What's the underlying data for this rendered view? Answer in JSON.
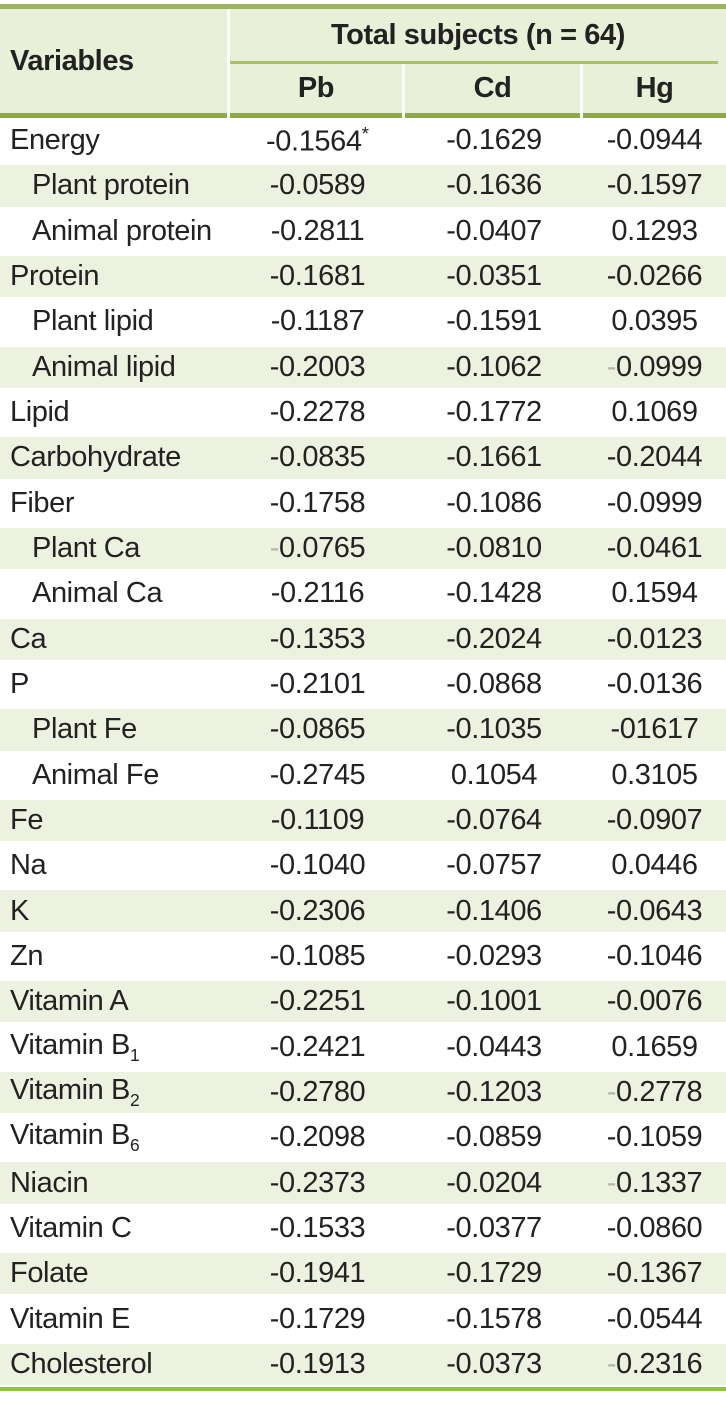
{
  "table": {
    "variables_header": "Variables",
    "group_header": "Total subjects (n = 64)",
    "columns": [
      "Pb",
      "Cd",
      "Hg"
    ],
    "colors": {
      "header_background": "#e9f0d8",
      "row_stripe_green": "#edf2e0",
      "top_border_green": "#9cb25c",
      "group_underline_green": "#a9c263",
      "header_bottom_border_green": "#8fa94a",
      "bottom_border_green": "#8dc63f",
      "text": "#222222"
    },
    "rows": [
      {
        "label": "Energy",
        "indent": false,
        "cells": [
          {
            "v": "-0.1564",
            "sup": "*"
          },
          {
            "v": "-0.1629"
          },
          {
            "v": "-0.0944"
          }
        ]
      },
      {
        "label": "Plant protein",
        "indent": true,
        "cells": [
          {
            "v": "-0.0589"
          },
          {
            "v": "-0.1636"
          },
          {
            "v": "-0.1597"
          }
        ]
      },
      {
        "label": "Animal protein",
        "indent": true,
        "cells": [
          {
            "v": "-0.2811"
          },
          {
            "v": "-0.0407"
          },
          {
            "v": "0.1293"
          }
        ]
      },
      {
        "label": "Protein",
        "indent": false,
        "cells": [
          {
            "v": "-0.1681"
          },
          {
            "v": "-0.0351"
          },
          {
            "v": "-0.0266"
          }
        ]
      },
      {
        "label": "Plant lipid",
        "indent": true,
        "cells": [
          {
            "v": "-0.1187"
          },
          {
            "v": "-0.1591"
          },
          {
            "v": "0.0395"
          }
        ]
      },
      {
        "label": "Animal lipid",
        "indent": true,
        "cells": [
          {
            "v": "-0.2003"
          },
          {
            "v": "-0.1062"
          },
          {
            "v": "-0.0999",
            "faint_minus": true
          }
        ]
      },
      {
        "label": "Lipid",
        "indent": false,
        "cells": [
          {
            "v": "-0.2278"
          },
          {
            "v": "-0.1772"
          },
          {
            "v": "0.1069"
          }
        ]
      },
      {
        "label": "Carbohydrate",
        "indent": false,
        "cells": [
          {
            "v": "-0.0835"
          },
          {
            "v": "-0.1661"
          },
          {
            "v": "-0.2044"
          }
        ]
      },
      {
        "label": "Fiber",
        "indent": false,
        "cells": [
          {
            "v": "-0.1758"
          },
          {
            "v": "-0.1086"
          },
          {
            "v": "-0.0999"
          }
        ]
      },
      {
        "label": "Plant Ca",
        "indent": true,
        "cells": [
          {
            "v": "-0.0765",
            "faint_minus": true
          },
          {
            "v": "-0.0810"
          },
          {
            "v": "-0.0461"
          }
        ]
      },
      {
        "label": "Animal Ca",
        "indent": true,
        "cells": [
          {
            "v": "-0.2116"
          },
          {
            "v": "-0.1428"
          },
          {
            "v": "0.1594"
          }
        ]
      },
      {
        "label": "Ca",
        "indent": false,
        "cells": [
          {
            "v": "-0.1353"
          },
          {
            "v": "-0.2024"
          },
          {
            "v": "-0.0123"
          }
        ]
      },
      {
        "label": "P",
        "indent": false,
        "cells": [
          {
            "v": "-0.2101"
          },
          {
            "v": "-0.0868"
          },
          {
            "v": "-0.0136"
          }
        ]
      },
      {
        "label": "Plant Fe",
        "indent": true,
        "cells": [
          {
            "v": "-0.0865"
          },
          {
            "v": "-0.1035"
          },
          {
            "v": "-01617"
          }
        ]
      },
      {
        "label": "Animal Fe",
        "indent": true,
        "cells": [
          {
            "v": "-0.2745"
          },
          {
            "v": "0.1054"
          },
          {
            "v": "0.3105"
          }
        ]
      },
      {
        "label": "Fe",
        "indent": false,
        "cells": [
          {
            "v": "-0.1109"
          },
          {
            "v": "-0.0764"
          },
          {
            "v": "-0.0907"
          }
        ]
      },
      {
        "label": "Na",
        "indent": false,
        "cells": [
          {
            "v": "-0.1040"
          },
          {
            "v": "-0.0757"
          },
          {
            "v": "0.0446"
          }
        ]
      },
      {
        "label": "K",
        "indent": false,
        "cells": [
          {
            "v": "-0.2306"
          },
          {
            "v": "-0.1406"
          },
          {
            "v": "-0.0643"
          }
        ]
      },
      {
        "label": "Zn",
        "indent": false,
        "cells": [
          {
            "v": "-0.1085"
          },
          {
            "v": "-0.0293"
          },
          {
            "v": "-0.1046"
          }
        ]
      },
      {
        "label": "Vitamin A",
        "indent": false,
        "cells": [
          {
            "v": "-0.2251"
          },
          {
            "v": "-0.1001"
          },
          {
            "v": "-0.0076"
          }
        ]
      },
      {
        "label": "Vitamin B",
        "sub": "1",
        "indent": false,
        "cells": [
          {
            "v": "-0.2421"
          },
          {
            "v": "-0.0443"
          },
          {
            "v": "0.1659"
          }
        ]
      },
      {
        "label": "Vitamin B",
        "sub": "2",
        "indent": false,
        "cells": [
          {
            "v": "-0.2780"
          },
          {
            "v": "-0.1203"
          },
          {
            "v": "-0.2778",
            "faint_minus": true
          }
        ]
      },
      {
        "label": "Vitamin B",
        "sub": "6",
        "indent": false,
        "cells": [
          {
            "v": "-0.2098"
          },
          {
            "v": "-0.0859"
          },
          {
            "v": "-0.1059"
          }
        ]
      },
      {
        "label": "Niacin",
        "indent": false,
        "cells": [
          {
            "v": "-0.2373"
          },
          {
            "v": "-0.0204"
          },
          {
            "v": "-0.1337",
            "faint_minus": true
          }
        ]
      },
      {
        "label": "Vitamin C",
        "indent": false,
        "cells": [
          {
            "v": "-0.1533"
          },
          {
            "v": "-0.0377"
          },
          {
            "v": "-0.0860"
          }
        ]
      },
      {
        "label": "Folate",
        "indent": false,
        "cells": [
          {
            "v": "-0.1941"
          },
          {
            "v": "-0.1729"
          },
          {
            "v": "-0.1367"
          }
        ]
      },
      {
        "label": "Vitamin E",
        "indent": false,
        "cells": [
          {
            "v": "-0.1729"
          },
          {
            "v": "-0.1578"
          },
          {
            "v": "-0.0544"
          }
        ]
      },
      {
        "label": "Cholesterol",
        "indent": false,
        "cells": [
          {
            "v": "-0.1913"
          },
          {
            "v": "-0.0373"
          },
          {
            "v": "-0.2316",
            "faint_minus": true
          }
        ]
      }
    ]
  },
  "chart_data": {
    "type": "table",
    "title": "Total subjects (n = 64)",
    "row_header": "Variables",
    "columns": [
      "Pb",
      "Cd",
      "Hg"
    ],
    "rows": [
      "Energy",
      "Plant protein",
      "Animal protein",
      "Protein",
      "Plant lipid",
      "Animal lipid",
      "Lipid",
      "Carbohydrate",
      "Fiber",
      "Plant Ca",
      "Animal Ca",
      "Ca",
      "P",
      "Plant Fe",
      "Animal Fe",
      "Fe",
      "Na",
      "K",
      "Zn",
      "Vitamin A",
      "Vitamin B1",
      "Vitamin B2",
      "Vitamin B6",
      "Niacin",
      "Vitamin C",
      "Folate",
      "Vitamin E",
      "Cholesterol"
    ],
    "values": [
      [
        "-0.1564*",
        "-0.1629",
        "-0.0944"
      ],
      [
        "-0.0589",
        "-0.1636",
        "-0.1597"
      ],
      [
        "-0.2811",
        "-0.0407",
        "0.1293"
      ],
      [
        "-0.1681",
        "-0.0351",
        "-0.0266"
      ],
      [
        "-0.1187",
        "-0.1591",
        "0.0395"
      ],
      [
        "-0.2003",
        "-0.1062",
        "-0.0999"
      ],
      [
        "-0.2278",
        "-0.1772",
        "0.1069"
      ],
      [
        "-0.0835",
        "-0.1661",
        "-0.2044"
      ],
      [
        "-0.1758",
        "-0.1086",
        "-0.0999"
      ],
      [
        "-0.0765",
        "-0.0810",
        "-0.0461"
      ],
      [
        "-0.2116",
        "-0.1428",
        "0.1594"
      ],
      [
        "-0.1353",
        "-0.2024",
        "-0.0123"
      ],
      [
        "-0.2101",
        "-0.0868",
        "-0.0136"
      ],
      [
        "-0.0865",
        "-0.1035",
        "-01617"
      ],
      [
        "-0.2745",
        "0.1054",
        "0.3105"
      ],
      [
        "-0.1109",
        "-0.0764",
        "-0.0907"
      ],
      [
        "-0.1040",
        "-0.0757",
        "0.0446"
      ],
      [
        "-0.2306",
        "-0.1406",
        "-0.0643"
      ],
      [
        "-0.1085",
        "-0.0293",
        "-0.1046"
      ],
      [
        "-0.2251",
        "-0.1001",
        "-0.0076"
      ],
      [
        "-0.2421",
        "-0.0443",
        "0.1659"
      ],
      [
        "-0.2780",
        "-0.1203",
        "-0.2778"
      ],
      [
        "-0.2098",
        "-0.0859",
        "-0.1059"
      ],
      [
        "-0.2373",
        "-0.0204",
        "-0.1337"
      ],
      [
        "-0.1533",
        "-0.0377",
        "-0.0860"
      ],
      [
        "-0.1941",
        "-0.1729",
        "-0.1367"
      ],
      [
        "-0.1729",
        "-0.1578",
        "-0.0544"
      ],
      [
        "-0.1913",
        "-0.0373",
        "-0.2316"
      ]
    ]
  }
}
